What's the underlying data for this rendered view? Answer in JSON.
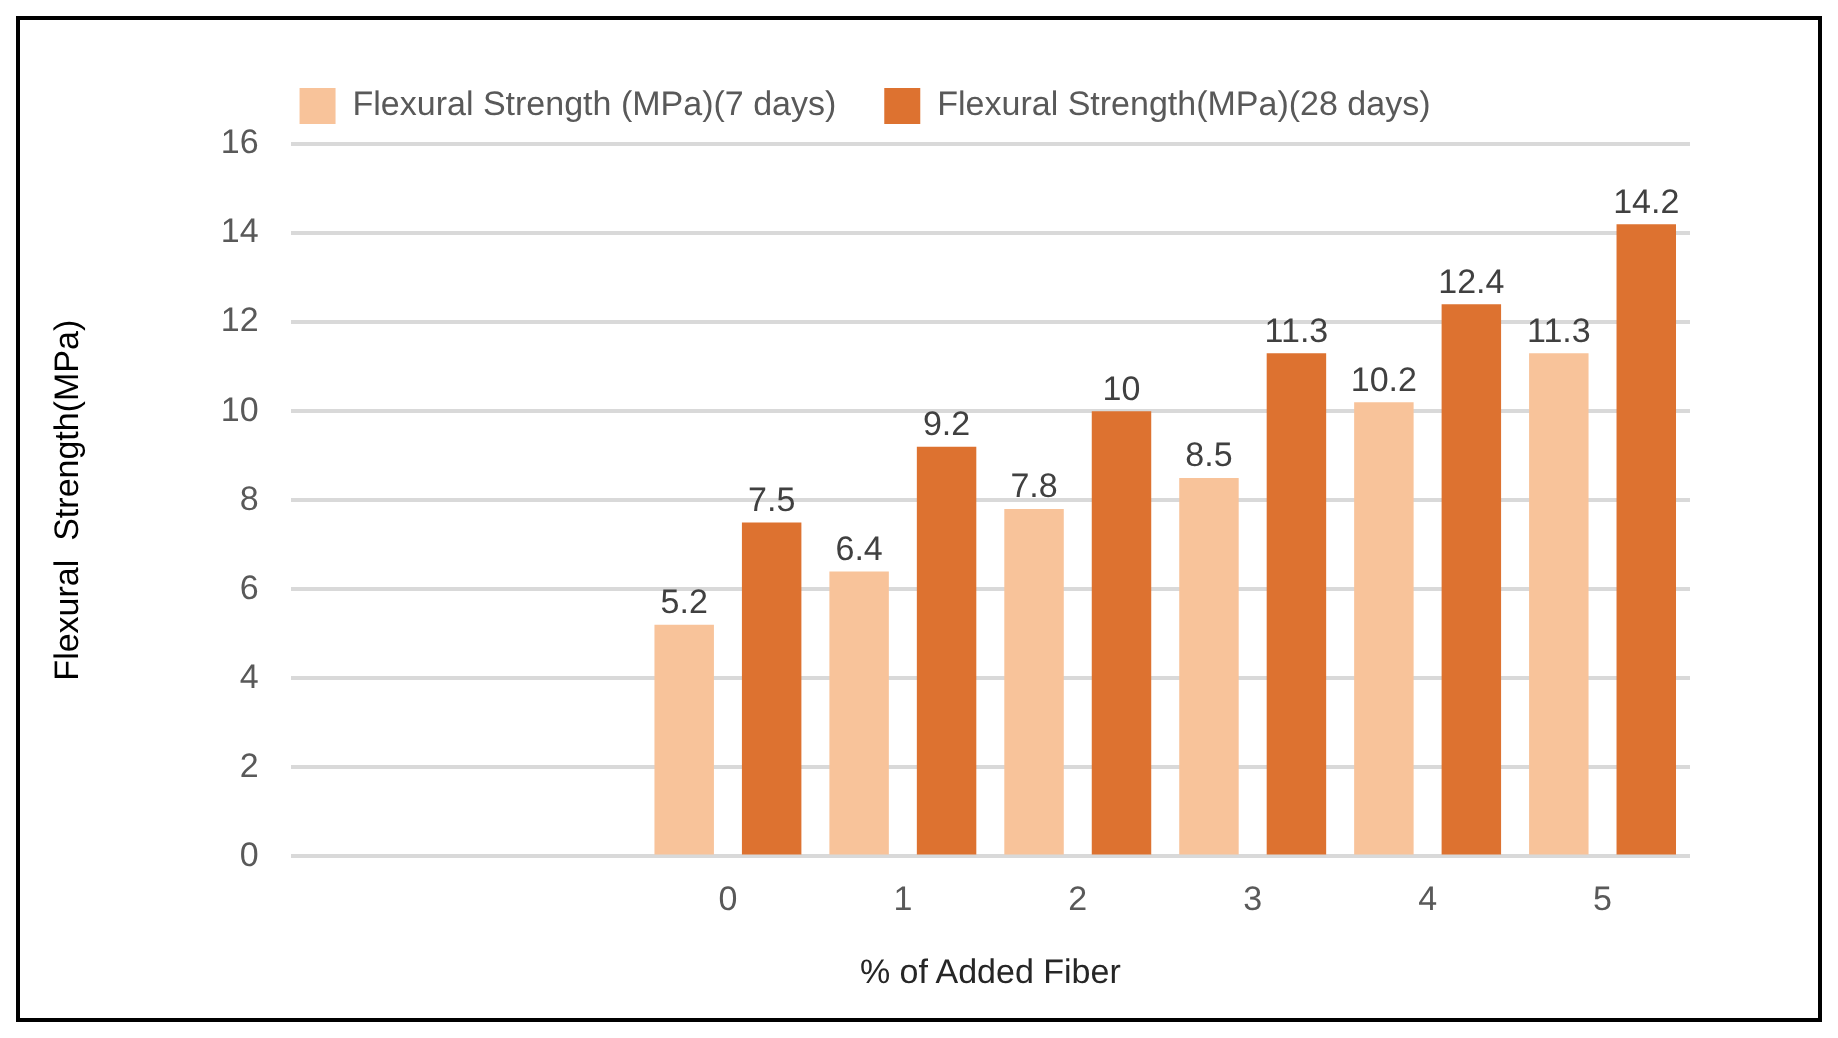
{
  "chart_data": {
    "type": "bar",
    "xlabel": "% of Added Fiber",
    "ylabel": "Flexural  Strength(MPa)",
    "categories": [
      null,
      null,
      "0",
      "1",
      "2",
      "3",
      "4",
      "5"
    ],
    "series": [
      {
        "name": "Flexural Strength (MPa)(7 days)",
        "color": "#f8c39a",
        "values": [
          null,
          null,
          5.2,
          6.4,
          7.8,
          8.5,
          10.2,
          11.3
        ]
      },
      {
        "name": "Flexural Strength(MPa)(28 days)",
        "color": "#dd7230",
        "values": [
          null,
          null,
          7.5,
          9.2,
          10,
          11.3,
          12.4,
          14.2
        ]
      }
    ],
    "ylim": [
      0,
      16
    ],
    "yticks": [
      0,
      2,
      4,
      6,
      8,
      10,
      12,
      14,
      16
    ],
    "grid": "y",
    "legend": "top",
    "data_labels": true
  }
}
